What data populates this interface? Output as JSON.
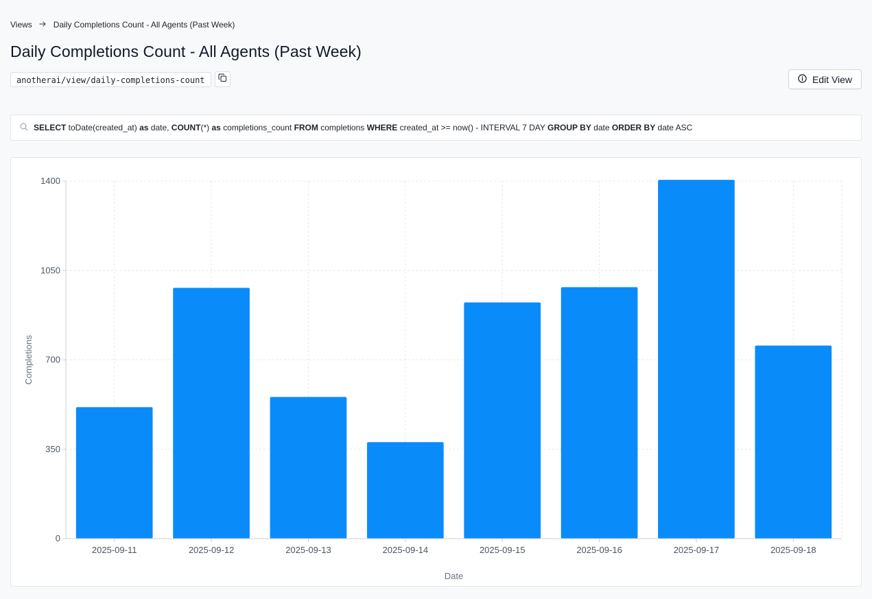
{
  "breadcrumb": {
    "root": "Views",
    "current": "Daily Completions Count - All Agents (Past Week)"
  },
  "page_title": "Daily Completions Count - All Agents (Past Week)",
  "view_path": "anotherai/view/daily-completions-count",
  "edit_button_label": "Edit View",
  "query": {
    "tokens": [
      {
        "t": "SELECT",
        "kw": true
      },
      {
        "t": " toDate(created_at) "
      },
      {
        "t": "as",
        "kw": true
      },
      {
        "t": " date, "
      },
      {
        "t": "COUNT",
        "kw": true
      },
      {
        "t": "(*) "
      },
      {
        "t": "as",
        "kw": true
      },
      {
        "t": " completions_count "
      },
      {
        "t": "FROM",
        "kw": true
      },
      {
        "t": " completions "
      },
      {
        "t": "WHERE",
        "kw": true
      },
      {
        "t": " created_at >= now() - INTERVAL 7 DAY "
      },
      {
        "t": "GROUP BY",
        "kw": true
      },
      {
        "t": " date "
      },
      {
        "t": "ORDER BY",
        "kw": true
      },
      {
        "t": " date ASC"
      }
    ]
  },
  "colors": {
    "bar": "#0a8bfa",
    "grid": "#e6e8eb",
    "axis": "#c9cdd2"
  },
  "icons": {
    "search": "search-icon",
    "copy": "copy-icon",
    "info": "info-icon",
    "arrow": "arrow-right-icon"
  },
  "chart_data": {
    "type": "bar",
    "categories": [
      "2025-09-11",
      "2025-09-12",
      "2025-09-13",
      "2025-09-14",
      "2025-09-15",
      "2025-09-16",
      "2025-09-17",
      "2025-09-18"
    ],
    "values": [
      515,
      982,
      555,
      378,
      925,
      985,
      1405,
      756
    ],
    "xlabel": "Date",
    "ylabel": "Completions",
    "ylim": [
      0,
      1400
    ],
    "yticks": [
      0,
      350,
      700,
      1050,
      1400
    ],
    "grid": true
  }
}
